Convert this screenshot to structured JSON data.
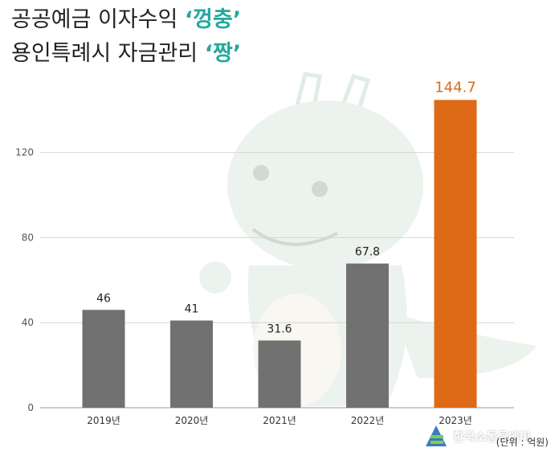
{
  "title": {
    "line1_main": "공공예금 이자수익",
    "line1_accent": "‘껑충’",
    "line2_main": "용인특례시 자금관리",
    "line2_accent": "‘짱’"
  },
  "colors": {
    "bar_default": "#717171",
    "bar_highlight": "#de6a17",
    "label_highlight": "#de6a17",
    "title_accent": "#25a99c",
    "mascot": "#c9ddcd"
  },
  "logo": {
    "text": "한국소통투데이",
    "icon": "logo-mark-icon"
  },
  "unit_label": "(단위 : 억원)",
  "chart_data": {
    "type": "bar",
    "categories": [
      "2019년",
      "2020년",
      "2021년",
      "2022년",
      "2023년"
    ],
    "values": [
      46,
      41,
      31.6,
      67.8,
      144.7
    ],
    "value_labels": [
      "46",
      "41",
      "31.6",
      "67.8",
      "144.7"
    ],
    "highlight_index": 4,
    "yticks": [
      0,
      40,
      80,
      120
    ],
    "ylim": [
      0,
      150
    ],
    "grid": true,
    "legend": "none"
  }
}
